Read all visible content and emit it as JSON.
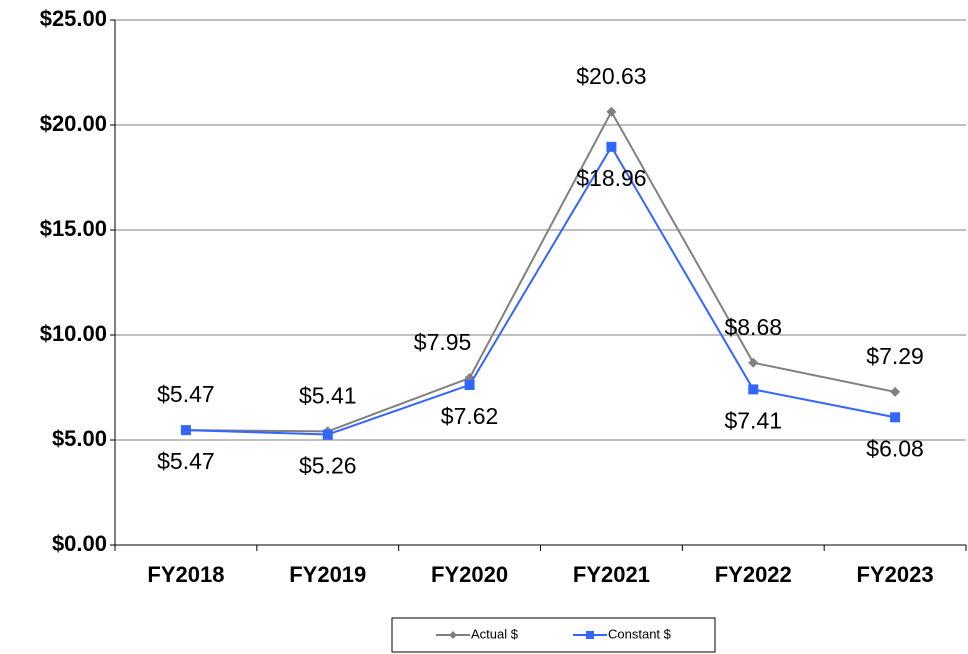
{
  "chart_data": {
    "type": "line",
    "categories": [
      "FY2018",
      "FY2019",
      "FY2020",
      "FY2021",
      "FY2022",
      "FY2023"
    ],
    "series": [
      {
        "name": "Actual $",
        "color": "#808080",
        "marker": "diamond",
        "values": [
          5.47,
          5.41,
          7.95,
          20.63,
          8.68,
          7.29
        ],
        "value_labels": [
          "$5.47",
          "$5.41",
          "$7.95",
          "$20.63",
          "$8.68",
          "$7.29"
        ]
      },
      {
        "name": "Constant $",
        "color": "#3366ff",
        "marker": "square",
        "values": [
          5.47,
          5.26,
          7.62,
          18.96,
          7.41,
          6.08
        ],
        "value_labels": [
          "$5.47",
          "$5.26",
          "$7.62",
          "$18.96",
          "$7.41",
          "$6.08"
        ]
      }
    ],
    "ylim": [
      0,
      25
    ],
    "yticks": [
      {
        "value": 0,
        "label": "$0.00"
      },
      {
        "value": 5,
        "label": "$5.00"
      },
      {
        "value": 10,
        "label": "$10.00"
      },
      {
        "value": 15,
        "label": "$15.00"
      },
      {
        "value": 20,
        "label": "$20.00"
      },
      {
        "value": 25,
        "label": "$25.00"
      }
    ],
    "grid": true,
    "legend": "bottom"
  }
}
